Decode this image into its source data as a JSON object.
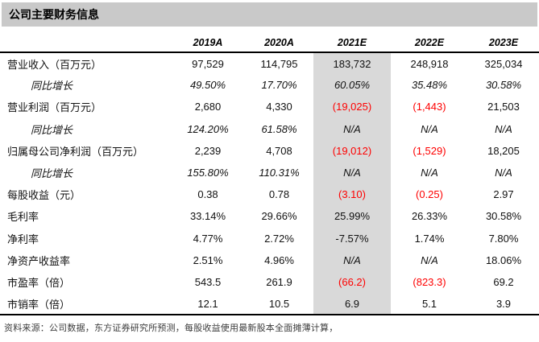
{
  "title": "公司主要财务信息",
  "colors": {
    "title_bg": "#c9c9c9",
    "highlight_bg": "#d9d9d9",
    "negative_text": "#fe0000"
  },
  "table": {
    "columns": [
      "2019A",
      "2020A",
      "2021E",
      "2022E",
      "2023E"
    ],
    "highlight_column": "2021E",
    "highlight_column_index": 2,
    "rows": [
      {
        "label": "营业收入（百万元）",
        "indent": false,
        "italic": false,
        "values": [
          "97,529",
          "114,795",
          "183,732",
          "248,918",
          "325,034"
        ],
        "red_indices": []
      },
      {
        "label": "同比增长",
        "indent": true,
        "italic": true,
        "values": [
          "49.50%",
          "17.70%",
          "60.05%",
          "35.48%",
          "30.58%"
        ],
        "red_indices": []
      },
      {
        "label": "营业利润（百万元）",
        "indent": false,
        "italic": false,
        "values": [
          "2,680",
          "4,330",
          "(19,025)",
          "(1,443)",
          "21,503"
        ],
        "red_indices": [
          2,
          3
        ]
      },
      {
        "label": "同比增长",
        "indent": true,
        "italic": true,
        "values": [
          "124.20%",
          "61.58%",
          "N/A",
          "N/A",
          "N/A"
        ],
        "red_indices": []
      },
      {
        "label": "归属母公司净利润（百万元）",
        "indent": false,
        "italic": false,
        "values": [
          "2,239",
          "4,708",
          "(19,012)",
          "(1,529)",
          "18,205"
        ],
        "red_indices": [
          2,
          3
        ]
      },
      {
        "label": "同比增长",
        "indent": true,
        "italic": true,
        "values": [
          "155.80%",
          "110.31%",
          "N/A",
          "N/A",
          "N/A"
        ],
        "red_indices": []
      },
      {
        "label": "每股收益（元）",
        "indent": false,
        "italic": false,
        "values": [
          "0.38",
          "0.78",
          "(3.10)",
          "(0.25)",
          "2.97"
        ],
        "red_indices": [
          2,
          3
        ]
      },
      {
        "label": "毛利率",
        "indent": false,
        "italic": false,
        "values": [
          "33.14%",
          "29.66%",
          "25.99%",
          "26.33%",
          "30.58%"
        ],
        "red_indices": []
      },
      {
        "label": "净利率",
        "indent": false,
        "italic": false,
        "values": [
          "4.77%",
          "2.72%",
          "-7.57%",
          "1.74%",
          "7.80%"
        ],
        "red_indices": []
      },
      {
        "label": "净资产收益率",
        "indent": false,
        "italic": false,
        "values": [
          "2.51%",
          "4.96%",
          "N/A",
          "N/A",
          "18.06%"
        ],
        "red_indices": []
      },
      {
        "label": "市盈率（倍）",
        "indent": false,
        "italic": false,
        "values": [
          "543.5",
          "261.9",
          "(66.2)",
          "(823.3)",
          "69.2"
        ],
        "red_indices": [
          2,
          3
        ]
      },
      {
        "label": "市销率（倍）",
        "indent": false,
        "italic": false,
        "values": [
          "12.1",
          "10.5",
          "6.9",
          "5.1",
          "3.9"
        ],
        "red_indices": []
      }
    ]
  },
  "footer": "资料来源：公司数据，东方证券研究所预测，每股收益使用最新股本全面摊薄计算，"
}
